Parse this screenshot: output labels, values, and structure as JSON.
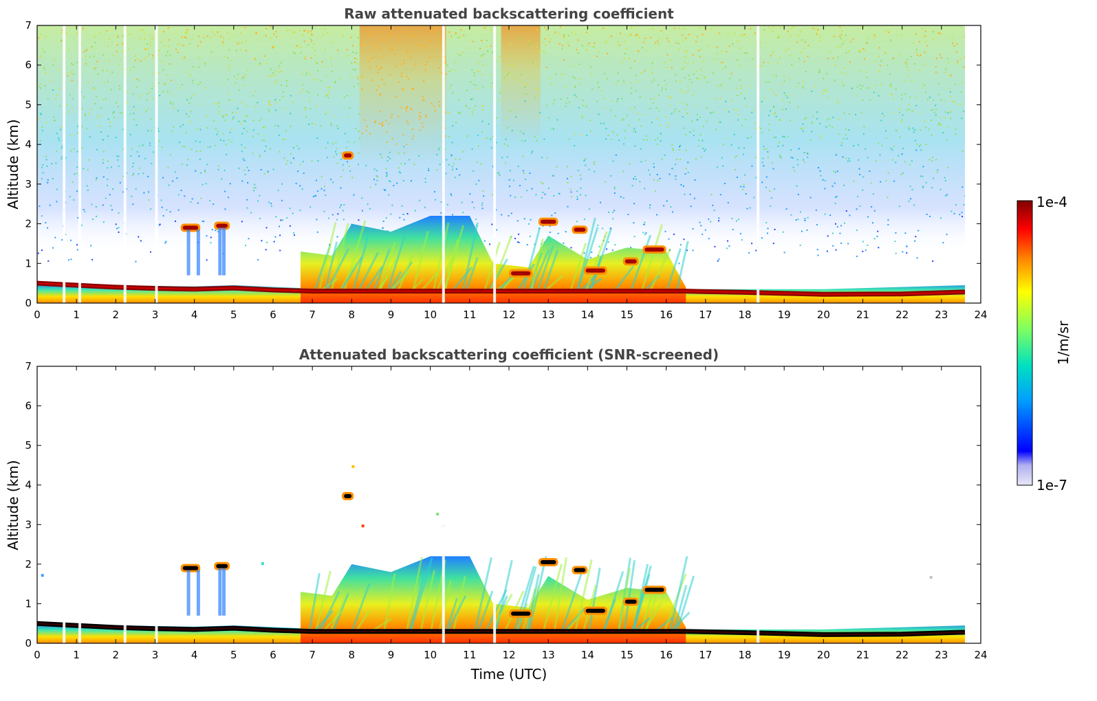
{
  "chart_data": [
    {
      "type": "heatmap",
      "title": "Raw attenuated backscattering coefficient",
      "xlabel": "",
      "ylabel": "Altitude (km)",
      "xlim": [
        0,
        24
      ],
      "ylim": [
        0,
        7
      ],
      "x_ticks": [
        "0",
        "1",
        "2",
        "3",
        "4",
        "5",
        "6",
        "7",
        "8",
        "9",
        "10",
        "11",
        "12",
        "13",
        "14",
        "15",
        "16",
        "17",
        "18",
        "19",
        "20",
        "21",
        "22",
        "23",
        "24"
      ],
      "y_ticks": [
        "0",
        "1",
        "2",
        "3",
        "4",
        "5",
        "6",
        "7"
      ],
      "data_end_time": 23.6,
      "gap_times": [
        0.65,
        1.05,
        2.2,
        3.0,
        10.3,
        11.6,
        18.3
      ],
      "aerosol_layer": [
        {
          "x": 0,
          "top": 0.55
        },
        {
          "x": 2,
          "top": 0.45
        },
        {
          "x": 4,
          "top": 0.42
        },
        {
          "x": 5,
          "top": 0.45
        },
        {
          "x": 6.7,
          "top": 0.38
        },
        {
          "x": 17,
          "top": 0.35
        },
        {
          "x": 20,
          "top": 0.35
        },
        {
          "x": 23.6,
          "top": 0.45
        }
      ],
      "strong_layer": [
        {
          "x": 0,
          "alt": 0.5
        },
        {
          "x": 1,
          "alt": 0.45
        },
        {
          "x": 2,
          "alt": 0.4
        },
        {
          "x": 3,
          "alt": 0.37
        },
        {
          "x": 4,
          "alt": 0.35
        },
        {
          "x": 5,
          "alt": 0.38
        },
        {
          "x": 6,
          "alt": 0.33
        },
        {
          "x": 7,
          "alt": 0.3
        },
        {
          "x": 16.5,
          "alt": 0.3
        },
        {
          "x": 18,
          "alt": 0.27
        },
        {
          "x": 20,
          "alt": 0.22
        },
        {
          "x": 22,
          "alt": 0.23
        },
        {
          "x": 23.6,
          "alt": 0.28
        }
      ],
      "convective_layer": [
        {
          "x": 6.7,
          "top": 1.3
        },
        {
          "x": 7.5,
          "top": 1.2
        },
        {
          "x": 8.0,
          "top": 2.0
        },
        {
          "x": 9.0,
          "top": 1.8
        },
        {
          "x": 10.0,
          "top": 2.2
        },
        {
          "x": 11.0,
          "top": 2.2
        },
        {
          "x": 11.6,
          "top": 1.0
        },
        {
          "x": 12.5,
          "top": 0.9
        },
        {
          "x": 13.0,
          "top": 1.7
        },
        {
          "x": 14.0,
          "top": 1.1
        },
        {
          "x": 15.0,
          "top": 1.4
        },
        {
          "x": 16.0,
          "top": 1.3
        },
        {
          "x": 16.5,
          "top": 0.4
        }
      ],
      "clouds": [
        {
          "x": 3.9,
          "alt": 1.9,
          "width": 0.5
        },
        {
          "x": 4.7,
          "alt": 1.95,
          "width": 0.4
        },
        {
          "x": 7.9,
          "alt": 3.72,
          "width": 0.3
        },
        {
          "x": 12.3,
          "alt": 0.75,
          "width": 0.6
        },
        {
          "x": 13.0,
          "alt": 2.05,
          "width": 0.5
        },
        {
          "x": 13.8,
          "alt": 1.85,
          "width": 0.4
        },
        {
          "x": 14.2,
          "alt": 0.82,
          "width": 0.6
        },
        {
          "x": 15.1,
          "alt": 1.05,
          "width": 0.4
        },
        {
          "x": 15.7,
          "alt": 1.35,
          "width": 0.6
        }
      ]
    },
    {
      "type": "heatmap",
      "title": "Attenuated backscattering coefficient (SNR-screened)",
      "xlabel": "Time (UTC)",
      "ylabel": "Altitude (km)",
      "xlim": [
        0,
        24
      ],
      "ylim": [
        0,
        7
      ],
      "x_ticks": [
        "0",
        "1",
        "2",
        "3",
        "4",
        "5",
        "6",
        "7",
        "8",
        "9",
        "10",
        "11",
        "12",
        "13",
        "14",
        "15",
        "16",
        "17",
        "18",
        "19",
        "20",
        "21",
        "22",
        "23",
        "24"
      ],
      "y_ticks": [
        "0",
        "1",
        "2",
        "3",
        "4",
        "5",
        "6",
        "7"
      ],
      "screened": true
    }
  ],
  "colorbar": {
    "label": "1/m/sr",
    "max_label": "1e-4",
    "min_label": "1e-7",
    "scale": "log",
    "colormap": "jet",
    "colors": [
      "#e8e8f8",
      "#0000ff",
      "#00a0ff",
      "#00e0c0",
      "#80ff60",
      "#ffff00",
      "#ff8000",
      "#ff0000",
      "#800000"
    ]
  }
}
